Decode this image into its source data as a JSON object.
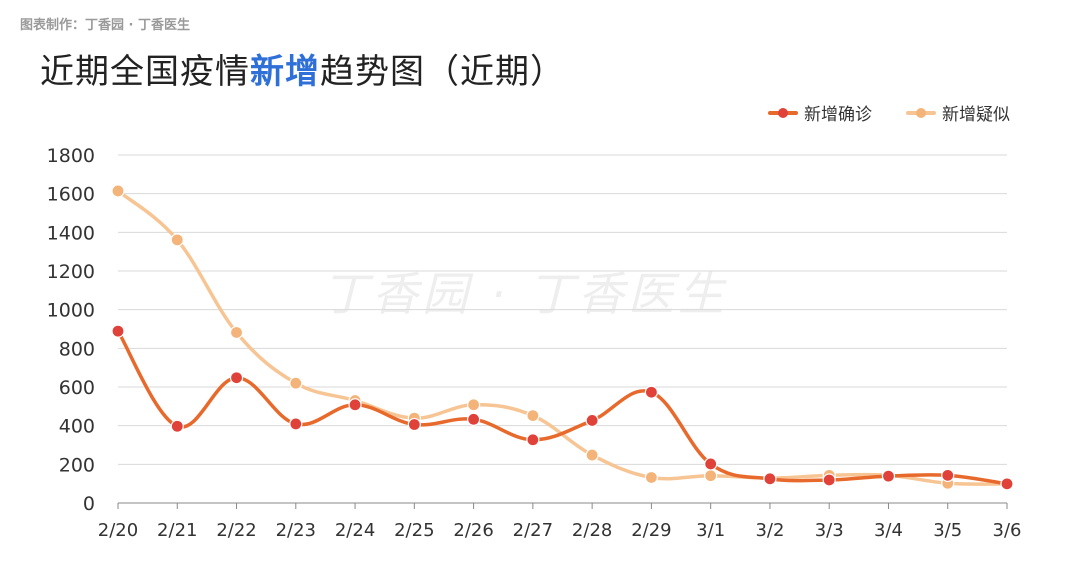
{
  "header": {
    "credit": "图表制作：丁香园 · 丁香医生",
    "title_prefix": "近期全国疫情",
    "title_highlight": "新增",
    "title_suffix": "趋势图（近期）"
  },
  "watermark": "丁香园 · 丁香医生",
  "colors": {
    "confirmed": "#e8692c",
    "confirmed_dot": "#e0423a",
    "suspected": "#f7c594",
    "suspected_dot": "#f4b479",
    "grid": "#d9d9d9",
    "axis": "#888888",
    "title_highlight": "#2e6fd8"
  },
  "chart_data": {
    "type": "line",
    "categories": [
      "2/20",
      "2/21",
      "2/22",
      "2/23",
      "2/24",
      "2/25",
      "2/26",
      "2/27",
      "2/28",
      "2/29",
      "3/1",
      "3/2",
      "3/3",
      "3/4",
      "3/5",
      "3/6"
    ],
    "series": [
      {
        "name": "新增确诊",
        "values": [
          889,
          397,
          648,
          409,
          508,
          406,
          433,
          327,
          427,
          573,
          202,
          125,
          119,
          139,
          143,
          99
        ]
      },
      {
        "name": "新增疑似",
        "values": [
          1614,
          1361,
          882,
          620,
          530,
          439,
          508,
          452,
          248,
          132,
          141,
          129,
          143,
          143,
          102,
          99
        ]
      }
    ],
    "y_ticks": [
      0,
      200,
      400,
      600,
      800,
      1000,
      1200,
      1400,
      1600,
      1800
    ],
    "ylim": [
      0,
      1800
    ],
    "grid": true,
    "legend_position": "top-right"
  }
}
